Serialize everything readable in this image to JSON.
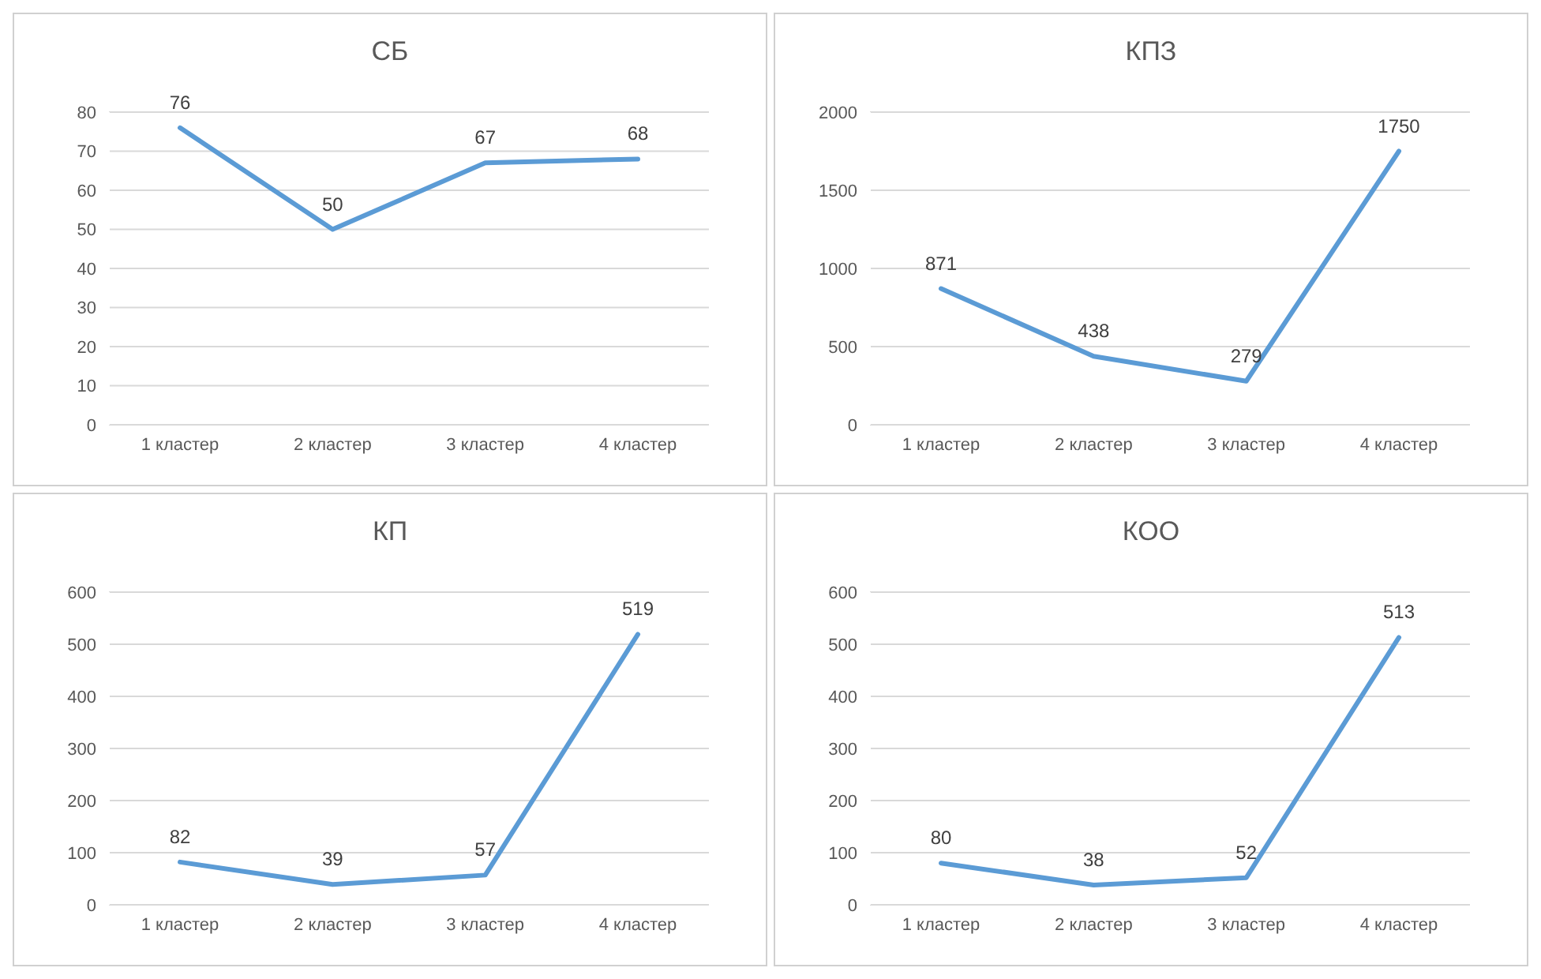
{
  "chart_data": [
    {
      "type": "line",
      "title": "СБ",
      "categories": [
        "1 кластер",
        "2 кластер",
        "3 кластер",
        "4 кластер"
      ],
      "values": [
        76,
        50,
        67,
        68
      ],
      "color": "#5b9bd5",
      "ylim": [
        0,
        80
      ],
      "yticks": [
        0,
        10,
        20,
        30,
        40,
        50,
        60,
        70,
        80
      ],
      "grid": "y",
      "data_labels": true,
      "marker": "none"
    },
    {
      "type": "line",
      "title": "КПЗ",
      "categories": [
        "1 кластер",
        "2 кластер",
        "3 кластер",
        "4 кластер"
      ],
      "values": [
        871,
        438,
        279,
        1750
      ],
      "color": "#5b9bd5",
      "ylim": [
        0,
        2000
      ],
      "yticks": [
        0,
        500,
        1000,
        1500,
        2000
      ],
      "grid": "y",
      "data_labels": true,
      "marker": "none"
    },
    {
      "type": "line",
      "title": "КП",
      "categories": [
        "1 кластер",
        "2 кластер",
        "3 кластер",
        "4 кластер"
      ],
      "values": [
        82,
        39,
        57,
        519
      ],
      "color": "#5b9bd5",
      "ylim": [
        0,
        600
      ],
      "yticks": [
        0,
        100,
        200,
        300,
        400,
        500,
        600
      ],
      "grid": "y",
      "data_labels": true,
      "marker": "none"
    },
    {
      "type": "line",
      "title": "КОО",
      "categories": [
        "1 кластер",
        "2 кластер",
        "3 кластер",
        "4 кластер"
      ],
      "values": [
        80,
        38,
        52,
        513
      ],
      "color": "#5b9bd5",
      "ylim": [
        0,
        600
      ],
      "yticks": [
        0,
        100,
        200,
        300,
        400,
        500,
        600
      ],
      "grid": "y",
      "data_labels": true,
      "marker": "none"
    }
  ]
}
